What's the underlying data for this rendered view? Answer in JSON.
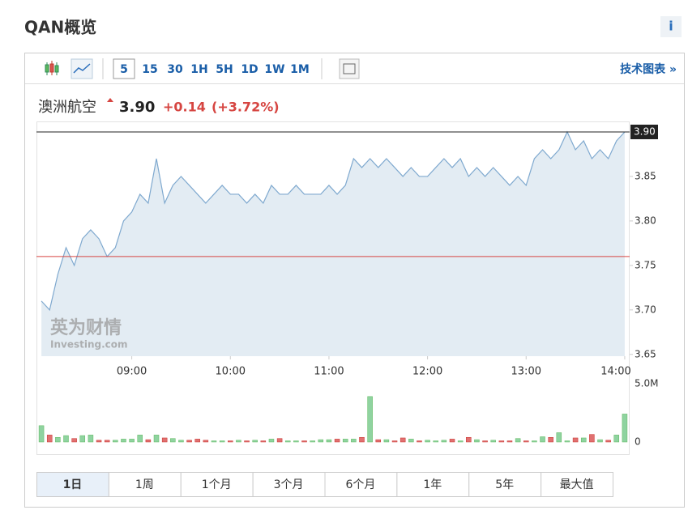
{
  "header": {
    "title": "QAN概览",
    "info": "i"
  },
  "toolbar": {
    "timeframes": [
      "5",
      "15",
      "30",
      "1H",
      "5H",
      "1D",
      "1W",
      "1M"
    ],
    "active": "5",
    "link": "技术图表 »"
  },
  "quote": {
    "name": "澳洲航空",
    "price": "3.90",
    "change": "+0.14",
    "change_pct": "(+3.72%)"
  },
  "watermark": [
    "英为财情",
    "Investing.com"
  ],
  "ranges": {
    "tabs": [
      "1日",
      "1周",
      "1个月",
      "3个月",
      "6个月",
      "1年",
      "5年",
      "最大值"
    ],
    "active": "1日"
  },
  "chart_data": {
    "type": "line",
    "x": [
      "08:05",
      "08:10",
      "08:15",
      "08:20",
      "08:25",
      "08:30",
      "08:35",
      "08:40",
      "08:45",
      "08:50",
      "08:55",
      "09:00",
      "09:05",
      "09:10",
      "09:15",
      "09:20",
      "09:25",
      "09:30",
      "09:35",
      "09:40",
      "09:45",
      "09:50",
      "09:55",
      "10:00",
      "10:05",
      "10:10",
      "10:15",
      "10:20",
      "10:25",
      "10:30",
      "10:35",
      "10:40",
      "10:45",
      "10:50",
      "10:55",
      "11:00",
      "11:05",
      "11:10",
      "11:15",
      "11:20",
      "11:25",
      "11:30",
      "11:35",
      "11:40",
      "11:45",
      "11:50",
      "11:55",
      "12:00",
      "12:05",
      "12:10",
      "12:15",
      "12:20",
      "12:25",
      "12:30",
      "12:35",
      "12:40",
      "12:45",
      "12:50",
      "12:55",
      "13:00",
      "13:05",
      "13:10",
      "13:15",
      "13:20",
      "13:25",
      "13:30",
      "13:35",
      "13:40",
      "13:45",
      "13:50",
      "13:55",
      "14:00"
    ],
    "xlim": [
      "08:02",
      "14:03"
    ],
    "xticks": [
      "09:00",
      "10:00",
      "11:00",
      "12:00",
      "13:00",
      "14:00"
    ],
    "ylim": [
      3.648,
      3.91
    ],
    "yticks": [
      {
        "value": 3.65,
        "label": "3.65"
      },
      {
        "value": 3.7,
        "label": "3.70"
      },
      {
        "value": 3.75,
        "label": "3.75"
      },
      {
        "value": 3.8,
        "label": "3.80"
      },
      3.85
    ],
    "y2lim": [
      0,
      5000000
    ],
    "y2ticks": [
      {
        "value": 5000000,
        "label": "5.0M"
      },
      0
    ],
    "reference_line": {
      "value": 3.76,
      "color": "#d64541"
    },
    "last_price": {
      "value": 3.9,
      "label": "3.90"
    },
    "series": [
      {
        "color": "#7fa9cf",
        "fill": "#e3ecf3",
        "values": [
          3.71,
          3.7,
          3.74,
          3.77,
          3.75,
          3.78,
          3.79,
          3.78,
          3.76,
          3.77,
          3.8,
          3.81,
          3.83,
          3.82,
          3.87,
          3.82,
          3.84,
          3.85,
          3.84,
          3.83,
          3.82,
          3.83,
          3.84,
          3.83,
          3.83,
          3.82,
          3.83,
          3.82,
          3.84,
          3.83,
          3.83,
          3.84,
          3.83,
          3.83,
          3.83,
          3.84,
          3.83,
          3.84,
          3.87,
          3.86,
          3.87,
          3.86,
          3.87,
          3.86,
          3.85,
          3.86,
          3.85,
          3.85,
          3.86,
          3.87,
          3.86,
          3.87,
          3.85,
          3.86,
          3.85,
          3.86,
          3.85,
          3.84,
          3.85,
          3.84,
          3.87,
          3.88,
          3.87,
          3.88,
          3.9,
          3.88,
          3.89,
          3.87,
          3.88,
          3.87,
          3.89,
          3.9
        ]
      },
      {
        "type": "bar",
        "axis": "y2",
        "up_color": "#8fd3a0",
        "down_color": "#e07070",
        "values": [
          1400000,
          600000,
          400000,
          550000,
          300000,
          550000,
          600000,
          150000,
          150000,
          150000,
          250000,
          250000,
          600000,
          200000,
          600000,
          350000,
          300000,
          150000,
          150000,
          250000,
          150000,
          100000,
          100000,
          100000,
          150000,
          100000,
          150000,
          100000,
          250000,
          300000,
          100000,
          100000,
          100000,
          100000,
          200000,
          200000,
          250000,
          250000,
          250000,
          400000,
          3900000,
          200000,
          200000,
          100000,
          350000,
          250000,
          100000,
          150000,
          100000,
          150000,
          250000,
          100000,
          400000,
          200000,
          100000,
          150000,
          100000,
          100000,
          300000,
          100000,
          100000,
          450000,
          400000,
          800000,
          100000,
          350000,
          350000,
          650000,
          200000,
          150000,
          600000,
          2400000
        ]
      }
    ]
  }
}
